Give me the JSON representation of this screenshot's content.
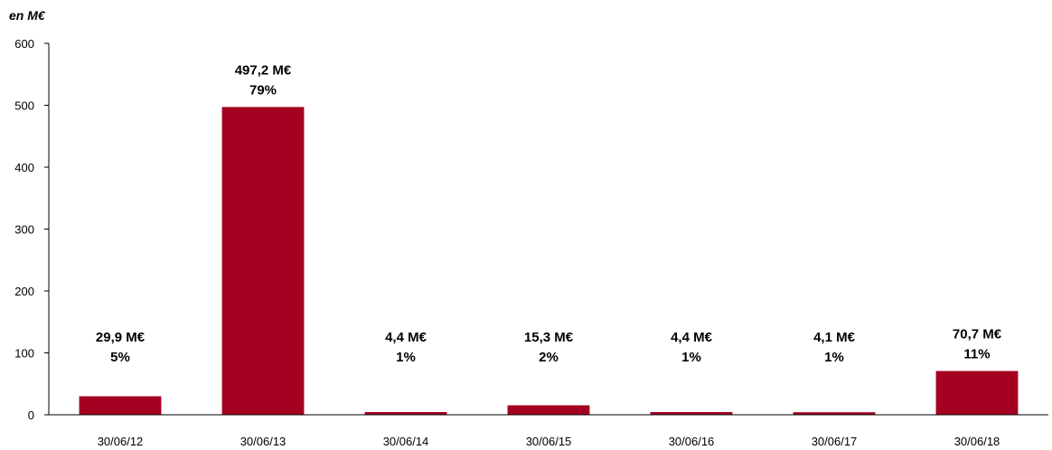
{
  "chart_data": {
    "type": "bar",
    "unit_label": "en M€",
    "categories": [
      "30/06/12",
      "30/06/13",
      "30/06/14",
      "30/06/15",
      "30/06/16",
      "30/06/17",
      "30/06/18"
    ],
    "values": [
      29.9,
      497.2,
      4.4,
      15.3,
      4.4,
      4.1,
      70.7
    ],
    "value_labels": [
      "29,9 M€",
      "497,2 M€",
      "4,4 M€",
      "15,3 M€",
      "4,4 M€",
      "4,1 M€",
      "70,7 M€"
    ],
    "percent_labels": [
      "5%",
      "79%",
      "1%",
      "2%",
      "1%",
      "1%",
      "11%"
    ],
    "yticks": [
      "0",
      "100",
      "200",
      "300",
      "400",
      "500",
      "600"
    ],
    "ylim": [
      0,
      600
    ],
    "grid": false,
    "legend": "none",
    "bar_color": "#A50021"
  }
}
